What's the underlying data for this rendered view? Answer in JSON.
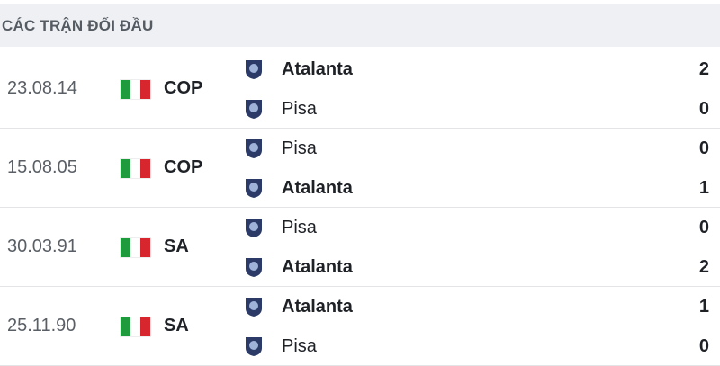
{
  "header": {
    "title": "CÁC TRẬN ĐỐI ĐẦU"
  },
  "matches": [
    {
      "date": "23.08.14",
      "competition": "COP",
      "teams": [
        {
          "name": "Atalanta",
          "score": 2
        },
        {
          "name": "Pisa",
          "score": 0
        }
      ]
    },
    {
      "date": "15.08.05",
      "competition": "COP",
      "teams": [
        {
          "name": "Pisa",
          "score": 0
        },
        {
          "name": "Atalanta",
          "score": 1
        }
      ]
    },
    {
      "date": "30.03.91",
      "competition": "SA",
      "teams": [
        {
          "name": "Pisa",
          "score": 0
        },
        {
          "name": "Atalanta",
          "score": 2
        }
      ]
    },
    {
      "date": "25.11.90",
      "competition": "SA",
      "teams": [
        {
          "name": "Atalanta",
          "score": 1
        },
        {
          "name": "Pisa",
          "score": 0
        }
      ]
    }
  ]
}
